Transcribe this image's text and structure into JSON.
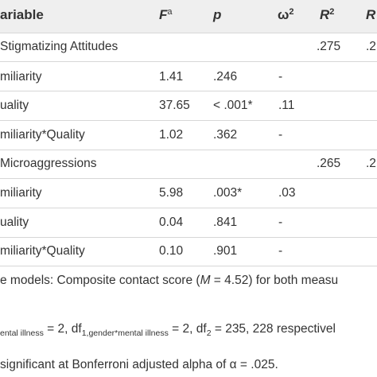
{
  "header": {
    "variable": "ariable",
    "f": "F",
    "f_sup": "a",
    "p": "p",
    "omega": "ω",
    "omega_sup": "2",
    "r": "R",
    "r_sup": "2",
    "r_adj": "R"
  },
  "sections": [
    {
      "title": "Stigmatizing Attitudes",
      "r2": ".275",
      "r2_adj": ".2",
      "rows": [
        {
          "label": "miliarity",
          "f": "1.41",
          "p": ".246",
          "omega": "-"
        },
        {
          "label": "uality",
          "f": "37.65",
          "p": "< .001*",
          "omega": ".11"
        },
        {
          "label": "miliarity*Quality",
          "f": "1.02",
          "p": ".362",
          "omega": "-"
        }
      ]
    },
    {
      "title": "Microaggressions",
      "r2": ".265",
      "r2_adj": ".2",
      "rows": [
        {
          "label": "miliarity",
          "f": "5.98",
          "p": ".003*",
          "omega": ".03"
        },
        {
          "label": "uality",
          "f": "0.04",
          "p": ".841",
          "omega": "-"
        },
        {
          "label": "miliarity*Quality",
          "f": "0.10",
          "p": ".901",
          "omega": "-"
        }
      ]
    }
  ],
  "notes": {
    "line1_pre": "e models: Composite contact score (",
    "line1_m": "M",
    "line1_post": " = 4.52) for both measu",
    "line2_a": "ental illness",
    "line2_b": " = 2, df",
    "line2_c": "1,gender*mental illness",
    "line2_d": " = 2, df",
    "line2_e": "2",
    "line2_f": " = 235, 228 respectivel",
    "line3": "significant at Bonferroni adjusted alpha of α = .025."
  }
}
